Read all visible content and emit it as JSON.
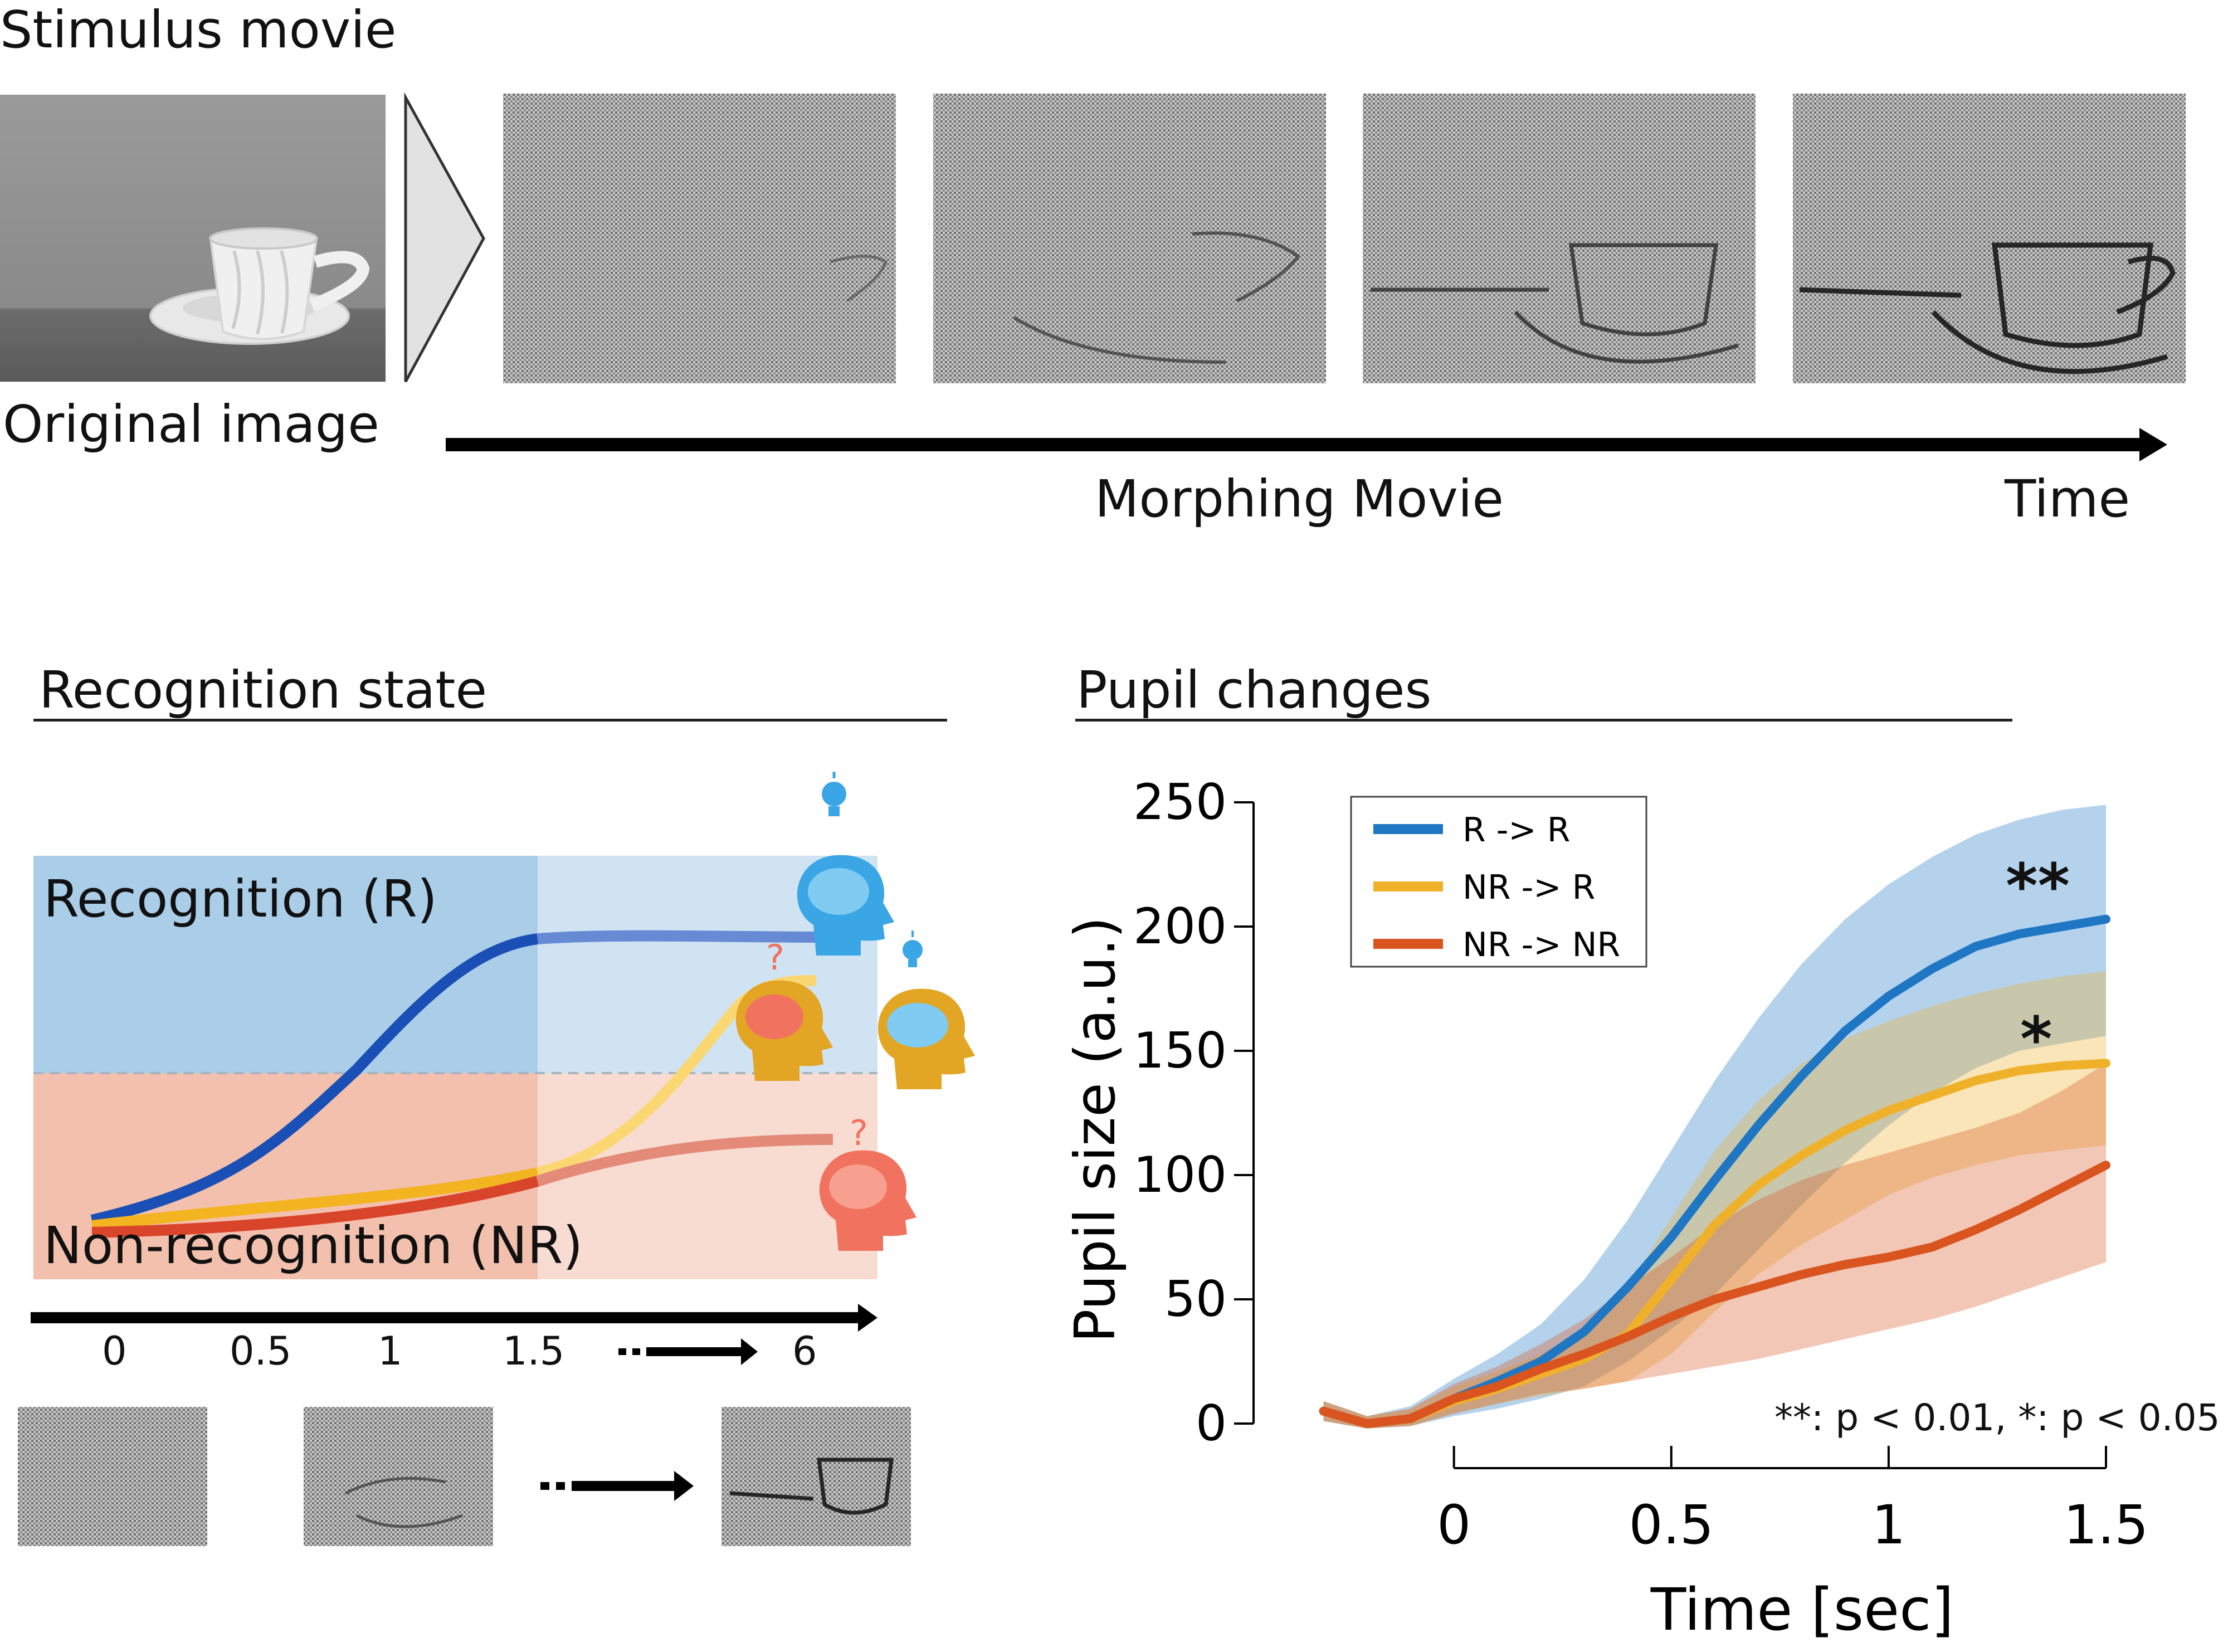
{
  "stimulus": {
    "title": "Stimulus movie",
    "original_label": "Original image",
    "morphing_label": "Morphing Movie",
    "time_label": "Time"
  },
  "recognition": {
    "title": "Recognition state",
    "r_label": "Recognition (R)",
    "nr_label": "Non-recognition (NR)",
    "ticks": [
      "0",
      "0.5",
      "1",
      "1.5",
      "6"
    ],
    "question_mark": "?",
    "colors": {
      "r_region": "#aacde8",
      "nr_region": "#f3c0ad",
      "r_curve": "#1a4fb5",
      "nr_to_r_curve": "#f3b421",
      "nr_curve": "#d9452b",
      "head_blue": "#3aa6e6",
      "head_gold": "#e3a524",
      "head_red": "#f0725f"
    },
    "icons": [
      "lightbulb-icon",
      "head-brain-icon"
    ]
  },
  "pupil": {
    "title": "Pupil changes",
    "significance_note": "**: p < 0.01, *: p < 0.05",
    "star_two": "**",
    "star_one": "*",
    "chart_data": {
      "type": "line",
      "xlabel": "Time [sec]",
      "ylabel": "Pupil size (a.u.)",
      "xlim": [
        -0.32,
        1.5
      ],
      "ylim": [
        0,
        250
      ],
      "xticks": [
        "0",
        "0.5",
        "1",
        "1.5"
      ],
      "yticks": [
        "0",
        "50",
        "100",
        "150",
        "200",
        "250"
      ],
      "legend_position": "top-left",
      "x": [
        -0.3,
        -0.2,
        -0.1,
        0.0,
        0.1,
        0.2,
        0.3,
        0.4,
        0.5,
        0.6,
        0.7,
        0.8,
        0.9,
        1.0,
        1.1,
        1.2,
        1.3,
        1.4,
        1.5
      ],
      "series": [
        {
          "name": "R -> R",
          "color": "#1f77c4",
          "values": [
            5,
            0,
            2,
            10,
            17,
            25,
            37,
            55,
            75,
            98,
            120,
            140,
            158,
            172,
            183,
            192,
            197,
            200,
            203
          ],
          "lower": [
            1,
            -2,
            -1,
            3,
            6,
            10,
            15,
            25,
            38,
            52,
            70,
            88,
            105,
            120,
            133,
            143,
            150,
            153,
            156
          ],
          "upper": [
            9,
            3,
            7,
            18,
            28,
            40,
            58,
            82,
            110,
            138,
            163,
            185,
            203,
            217,
            228,
            237,
            243,
            247,
            249
          ]
        },
        {
          "name": "NR -> R",
          "color": "#f0b12a",
          "values": [
            5,
            0,
            2,
            9,
            14,
            20,
            26,
            36,
            58,
            80,
            96,
            108,
            118,
            126,
            132,
            138,
            142,
            144,
            145
          ],
          "lower": [
            1,
            -2,
            -1,
            4,
            8,
            11,
            14,
            17,
            28,
            45,
            60,
            72,
            82,
            92,
            99,
            104,
            108,
            110,
            112
          ],
          "upper": [
            9,
            3,
            6,
            15,
            21,
            28,
            38,
            55,
            83,
            110,
            130,
            145,
            155,
            162,
            168,
            173,
            177,
            180,
            182
          ]
        },
        {
          "name": "NR -> NR",
          "color": "#d9541e",
          "values": [
            5,
            0,
            2,
            10,
            15,
            22,
            28,
            35,
            43,
            50,
            55,
            60,
            64,
            67,
            71,
            78,
            86,
            95,
            104
          ],
          "lower": [
            1,
            -2,
            -1,
            4,
            8,
            12,
            14,
            17,
            20,
            23,
            26,
            30,
            34,
            38,
            42,
            47,
            53,
            59,
            65
          ],
          "upper": [
            9,
            3,
            6,
            16,
            23,
            32,
            42,
            55,
            67,
            80,
            90,
            98,
            104,
            109,
            114,
            119,
            125,
            134,
            145
          ]
        }
      ]
    }
  }
}
